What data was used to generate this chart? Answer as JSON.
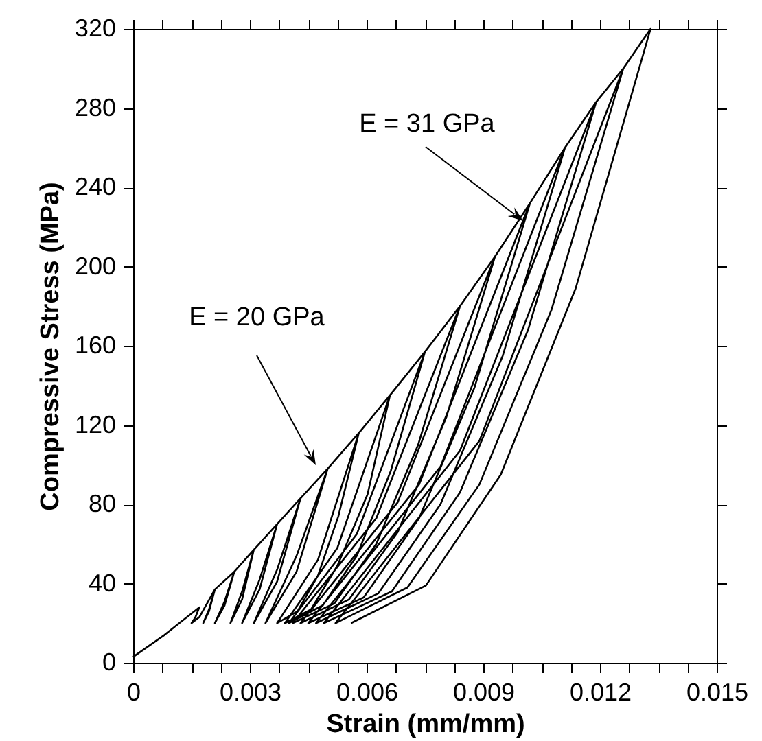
{
  "chart_data": {
    "type": "line",
    "xlabel": "Strain (mm/mm)",
    "ylabel": "Compressive Stress (MPa)",
    "annotations": [
      "E = 20 GPa",
      "E = 31 GPa"
    ],
    "series": [
      {
        "color": "#000000",
        "x": [
          0,
          0.0008,
          0.0017,
          0.0016,
          0.0015,
          0.0017,
          0.0021,
          0.00195,
          0.0018,
          0.00195,
          0.0021,
          0.0026,
          0.00235,
          0.0021,
          0.00235,
          0.0026,
          0.0031,
          0.0028,
          0.0025,
          0.0028,
          0.0031,
          0.0037,
          0.00325,
          0.0028,
          0.00325,
          0.0037,
          0.0043,
          0.0037,
          0.0031,
          0.0037,
          0.0043,
          0.005,
          0.0042,
          0.0034,
          0.0042,
          0.005,
          0.0058,
          0.005275,
          0.00475,
          0.004225,
          0.0037,
          0.00475,
          0.0058,
          0.0066,
          0.006025,
          0.00525,
          0.004575,
          0.0039,
          0.00525,
          0.0066,
          0.0075,
          0.006625,
          0.00575,
          0.004875,
          0.004,
          0.00575,
          0.0075,
          0.0084,
          0.007325,
          0.00625,
          0.005175,
          0.0041,
          0.00625,
          0.0084,
          0.0093,
          0.00805,
          0.0068,
          0.00555,
          0.0043,
          0.0068,
          0.0093,
          0.0102,
          0.008775,
          0.00735,
          0.005925,
          0.0045,
          0.00735,
          0.0102,
          0.0111,
          0.0095,
          0.0079,
          0.0063,
          0.0047,
          0.0079,
          0.0111,
          0.0119,
          0.01015,
          0.0084,
          0.00665,
          0.0049,
          0.0084,
          0.0119,
          0.0126,
          0.01075,
          0.0089,
          0.00705,
          0.0052,
          0.0089,
          0.0126,
          0.0133,
          0.011375,
          0.00945,
          0.007525,
          0.0056
        ],
        "values": [
          3,
          14,
          28,
          23,
          20,
          23,
          37,
          26,
          20,
          27,
          37,
          46,
          29,
          20,
          31,
          46,
          57,
          32,
          20,
          36,
          57,
          70,
          37,
          20,
          42,
          70,
          83,
          41,
          20,
          47,
          83,
          98,
          46,
          20,
          54,
          98,
          116,
          74,
          44,
          26,
          20,
          52,
          116,
          135,
          85,
          49,
          27,
          20,
          58,
          135,
          157,
          97,
          54,
          29,
          20,
          65,
          157,
          180,
          110,
          60,
          30,
          20,
          73,
          180,
          205,
          124,
          66,
          32,
          20,
          81,
          205,
          232,
          139,
          73,
          33,
          20,
          90,
          232,
          260,
          155,
          80,
          35,
          20,
          99,
          260,
          283,
          168,
          86,
          36,
          20,
          107,
          283,
          300,
          178,
          90,
          38,
          20,
          112,
          300,
          320,
          189,
          95,
          39,
          20
        ]
      }
    ],
    "xlim": [
      0,
      0.015
    ],
    "xticks": [
      0,
      {
        "value": 0.00075,
        "label": null
      },
      {
        "value": 0.0015,
        "label": null
      },
      {
        "value": 0.00225,
        "label": null
      },
      0.003,
      {
        "value": 0.00375,
        "label": null
      },
      {
        "value": 0.0045,
        "label": null
      },
      {
        "value": 0.00525,
        "label": null
      },
      0.006,
      {
        "value": 0.00675,
        "label": null
      },
      {
        "value": 0.0075,
        "label": null
      },
      {
        "value": 0.00825,
        "label": null
      },
      0.009,
      {
        "value": 0.00975,
        "label": null
      },
      {
        "value": 0.0105,
        "label": null
      },
      {
        "value": 0.01125,
        "label": null
      },
      0.012,
      {
        "value": 0.01275,
        "label": null
      },
      {
        "value": 0.0135,
        "label": null
      },
      {
        "value": 0.01425,
        "label": null
      },
      0.015
    ],
    "ylim": [
      0,
      320
    ],
    "yticks": [
      0,
      40,
      80,
      120,
      160,
      200,
      240,
      280,
      320
    ],
    "grid": false,
    "marker": "none",
    "line_style": "solid"
  }
}
